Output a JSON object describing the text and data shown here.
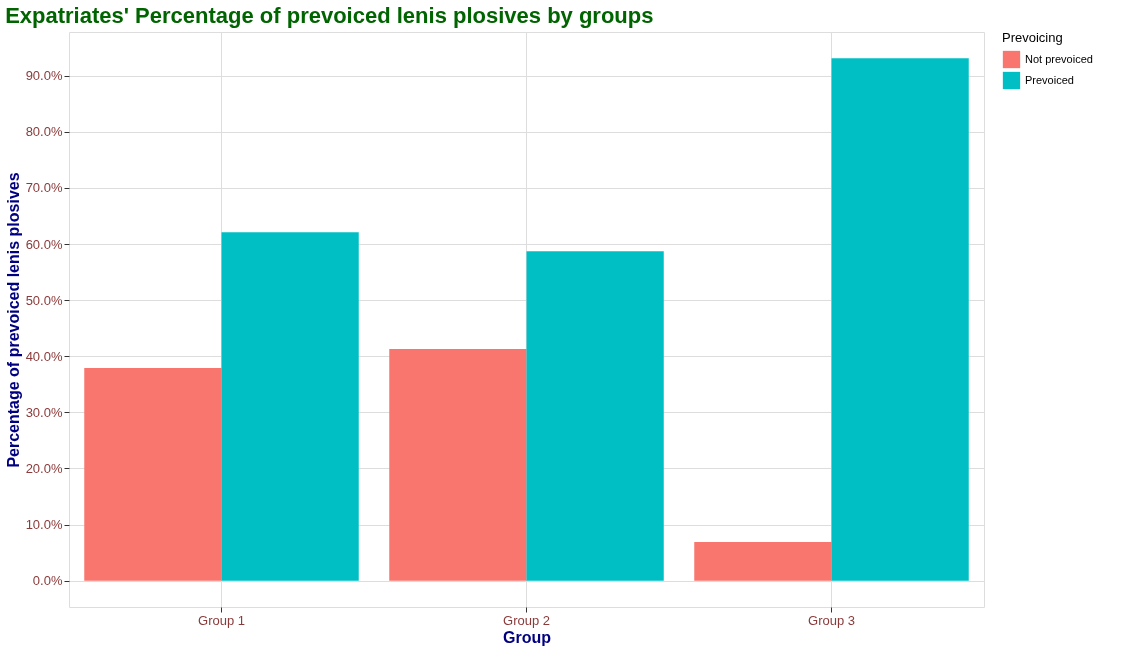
{
  "chart_data": {
    "type": "bar",
    "title": "Expatriates' Percentage of prevoiced lenis plosives by groups",
    "xlabel": "Group",
    "ylabel": "Percentage of prevoiced lenis plosives",
    "legend_title": "Prevoicing",
    "categories": [
      "Group 1",
      "Group 2",
      "Group 3"
    ],
    "series": [
      {
        "name": "Not prevoiced",
        "color": "#f8766d",
        "values": [
          37.9,
          41.3,
          6.9
        ]
      },
      {
        "name": "Prevoiced",
        "color": "#00bfc4",
        "values": [
          62.1,
          58.7,
          93.1
        ]
      }
    ],
    "ylim": [
      -4.7,
      97.8
    ],
    "yticks": [
      {
        "value": 0,
        "label": "0.0%"
      },
      {
        "value": 10,
        "label": "10.0%"
      },
      {
        "value": 20,
        "label": "20.0%"
      },
      {
        "value": 30,
        "label": "30.0%"
      },
      {
        "value": 40,
        "label": "40.0%"
      },
      {
        "value": 50,
        "label": "50.0%"
      },
      {
        "value": 60,
        "label": "60.0%"
      },
      {
        "value": 70,
        "label": "70.0%"
      },
      {
        "value": 80,
        "label": "80.0%"
      },
      {
        "value": 90,
        "label": "90.0%"
      }
    ],
    "grid": true,
    "legend": "right"
  }
}
